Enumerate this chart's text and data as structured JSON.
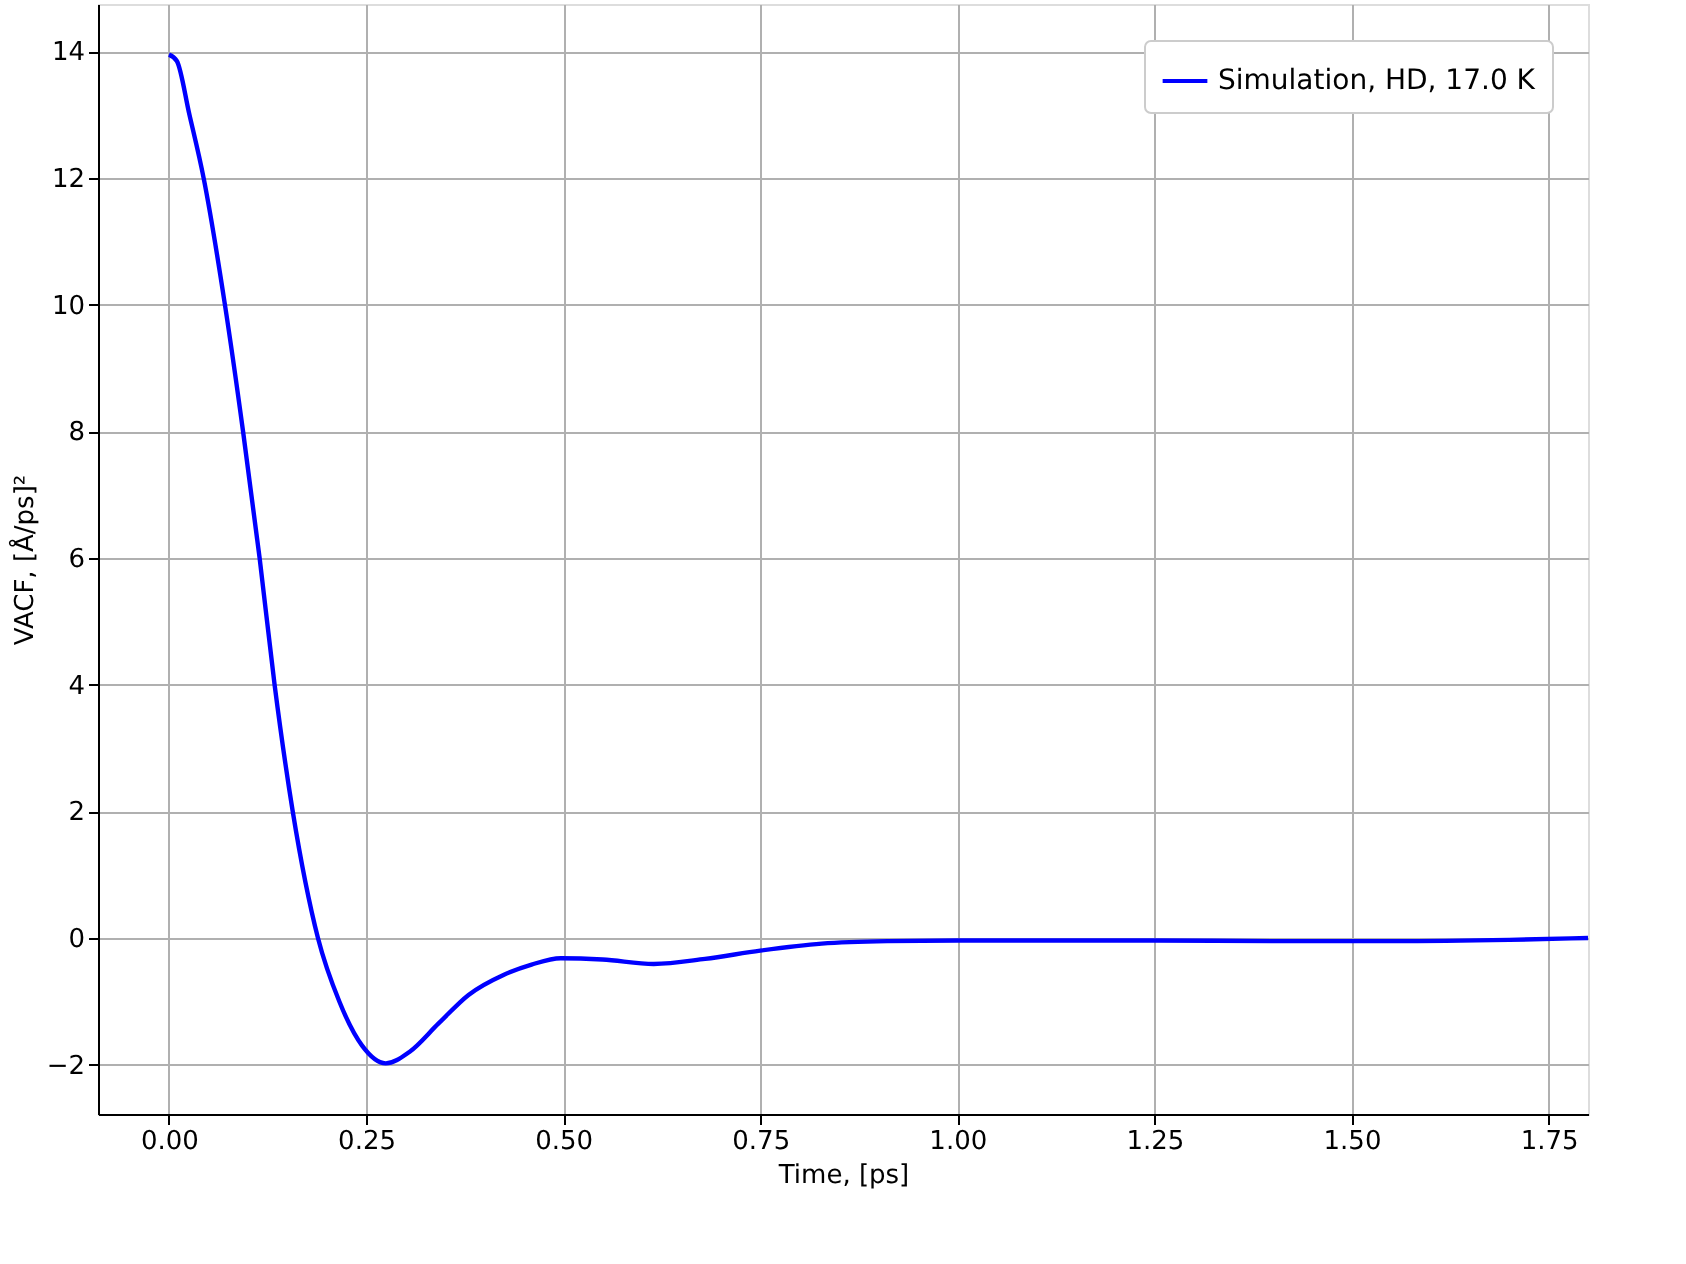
{
  "chart_data": {
    "type": "line",
    "xlabel": "Time, [ps]",
    "ylabel": "VACF, [Å/ps]²",
    "xlim": [
      -0.09,
      1.8
    ],
    "ylim": [
      -2.78,
      14.75
    ],
    "xticks": [
      {
        "value": 0.0,
        "label": "0.00"
      },
      {
        "value": 0.25,
        "label": "0.25"
      },
      {
        "value": 0.5,
        "label": "0.50"
      },
      {
        "value": 0.75,
        "label": "0.75"
      },
      {
        "value": 1.0,
        "label": "1.00"
      },
      {
        "value": 1.25,
        "label": "1.25"
      },
      {
        "value": 1.5,
        "label": "1.50"
      },
      {
        "value": 1.75,
        "label": "1.75"
      }
    ],
    "yticks": [
      {
        "value": -2,
        "label": "−2"
      },
      0,
      2,
      4,
      6,
      8,
      10,
      12,
      14
    ],
    "grid": true,
    "legend": "top right",
    "line_style": "solid",
    "marker": "none",
    "x": [
      0,
      0.01,
      0.026,
      0.044,
      0.071,
      0.094,
      0.115,
      0.134,
      0.157,
      0.189,
      0.216,
      0.245,
      0.275,
      0.305,
      0.342,
      0.38,
      0.425,
      0.46,
      0.497,
      0.55,
      0.615,
      0.68,
      0.75,
      0.828,
      0.911,
      1.0,
      1.1,
      1.25,
      1.4,
      1.55,
      1.7,
      1.8
    ],
    "series": [
      {
        "name": "Simulation, HD, 17.0 K",
        "color": "#0000ff",
        "values": [
          13.95,
          13.85,
          13.0,
          12,
          10,
          8,
          6,
          4,
          2,
          0,
          -1,
          -1.7,
          -1.98,
          -1.8,
          -1.35,
          -0.9,
          -0.58,
          -0.42,
          -0.32,
          -0.34,
          -0.41,
          -0.33,
          -0.2,
          -0.09,
          -0.05,
          -0.04,
          -0.04,
          -0.04,
          -0.05,
          -0.05,
          -0.03,
          0
        ]
      }
    ]
  }
}
